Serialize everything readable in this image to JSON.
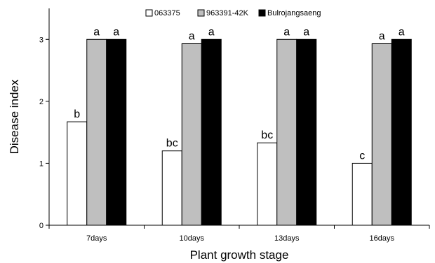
{
  "chart_data": {
    "type": "bar",
    "title": "",
    "xlabel": "Plant growth stage",
    "ylabel": "Disease index",
    "ylim": [
      0,
      3.5
    ],
    "yticks": [
      "0",
      "1",
      "2",
      "3"
    ],
    "categories": [
      "7days",
      "10days",
      "13days",
      "16days"
    ],
    "series": [
      {
        "name": "063375",
        "color": "#ffffff",
        "values": [
          1.67,
          1.2,
          1.33,
          1.0
        ],
        "letters": [
          "b",
          "bc",
          "bc",
          "c"
        ]
      },
      {
        "name": "963391-42K",
        "color": "#bfbfbf",
        "values": [
          3.0,
          2.93,
          3.0,
          2.93
        ],
        "letters": [
          "a",
          "a",
          "a",
          "a"
        ]
      },
      {
        "name": "Bulrojangsaeng",
        "color": "#000000",
        "values": [
          3.0,
          3.0,
          3.0,
          3.0
        ],
        "letters": [
          "a",
          "a",
          "a",
          "a"
        ]
      }
    ],
    "legend_position": "top",
    "grid": false
  }
}
